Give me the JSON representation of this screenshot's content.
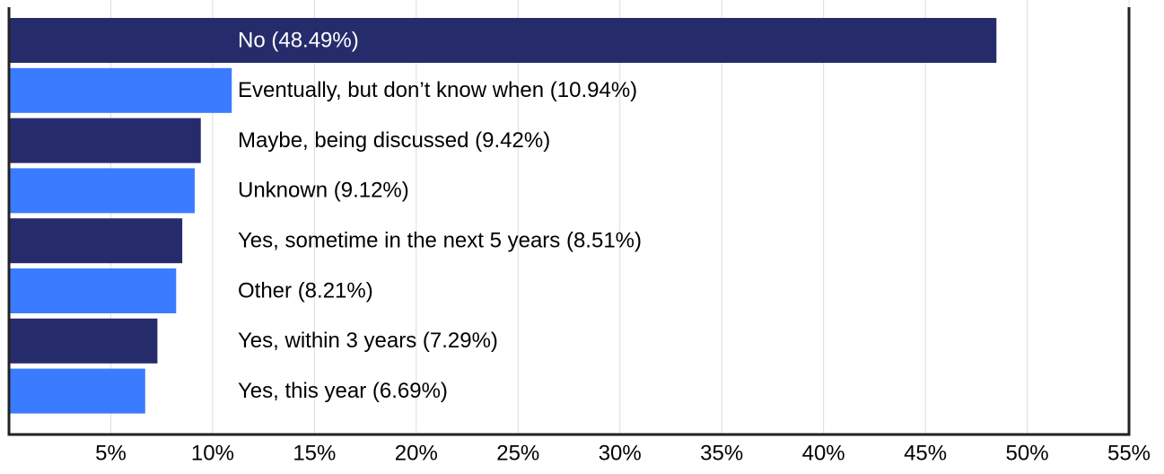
{
  "chart_data": {
    "type": "barh",
    "categories": [
      "No (48.49%)",
      "Eventually, but don’t know when (10.94%)",
      "Maybe, being discussed (9.42%)",
      "Unknown (9.12%)",
      "Yes, sometime in the next 5 years (8.51%)",
      "Other (8.21%)",
      "Yes, within 3 years (7.29%)",
      "Yes, this year (6.69%)"
    ],
    "values": [
      48.49,
      10.94,
      9.42,
      9.12,
      8.51,
      8.21,
      7.29,
      6.69
    ],
    "colors": [
      "#262c6b",
      "#3b7bff",
      "#262c6b",
      "#3b7bff",
      "#262c6b",
      "#3b7bff",
      "#262c6b",
      "#3b7bff"
    ],
    "xlim": [
      0,
      55
    ],
    "xticks": [
      {
        "value": 5,
        "label": "5%"
      },
      {
        "value": 10,
        "label": "10%"
      },
      {
        "value": 15,
        "label": "15%"
      },
      {
        "value": 20,
        "label": "20%"
      },
      {
        "value": 25,
        "label": "25%"
      },
      {
        "value": 30,
        "label": "30%"
      },
      {
        "value": 35,
        "label": "35%"
      },
      {
        "value": 40,
        "label": "40%"
      },
      {
        "value": 45,
        "label": "45%"
      },
      {
        "value": 50,
        "label": "50%"
      },
      {
        "value": 55,
        "label": "55%"
      }
    ],
    "grid": true
  }
}
